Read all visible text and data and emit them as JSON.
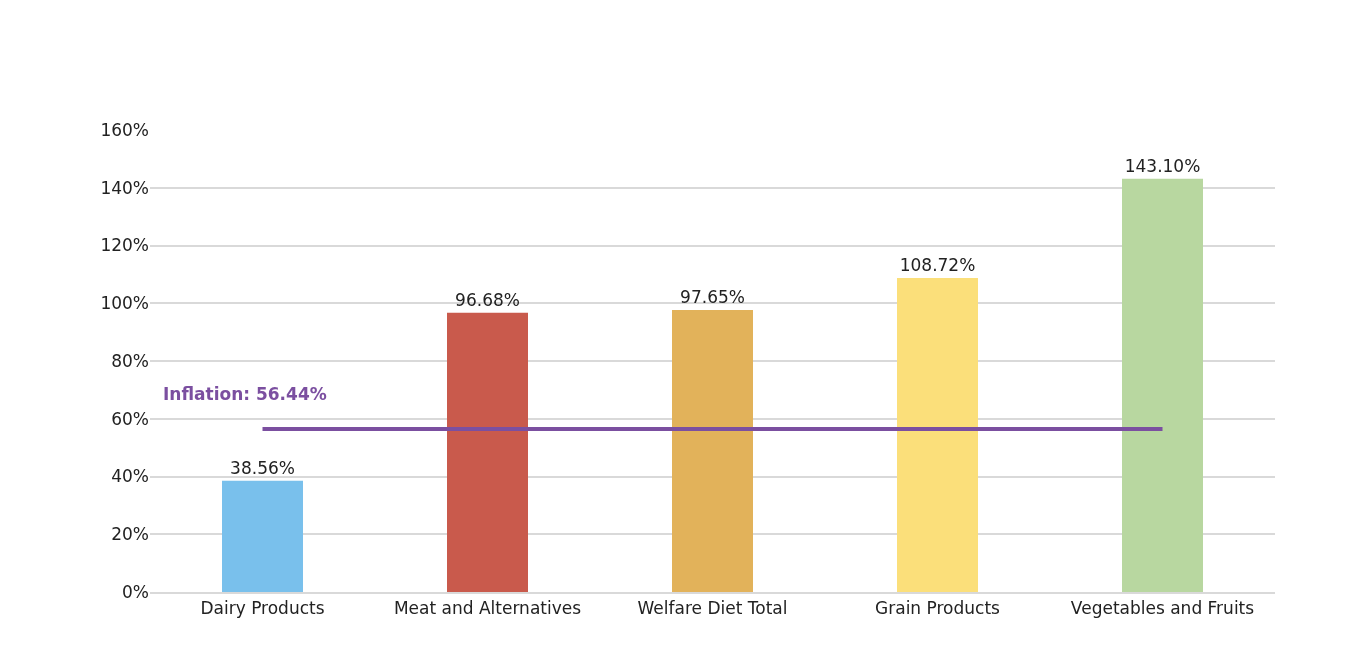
{
  "chart_data": {
    "type": "bar",
    "categories": [
      "Dairy Products",
      "Meat and Alternatives",
      "Welfare Diet Total",
      "Grain Products",
      "Vegetables and Fruits"
    ],
    "values": [
      38.56,
      96.68,
      97.65,
      108.72,
      143.1
    ],
    "colors": [
      "#79c0ec",
      "#c95a4c",
      "#e2b25a",
      "#fbdf7a",
      "#b8d7a0"
    ],
    "value_labels": [
      "38.56%",
      "96.68%",
      "97.65%",
      "108.72%",
      "143.10%"
    ],
    "ylim": [
      0,
      160
    ],
    "yticks": [
      {
        "value": 0,
        "label": "0%"
      },
      {
        "value": 20,
        "label": "20%"
      },
      {
        "value": 40,
        "label": "40%"
      },
      {
        "value": 60,
        "label": "60%"
      },
      {
        "value": 80,
        "label": "80%"
      },
      {
        "value": 100,
        "label": "100%"
      },
      {
        "value": 120,
        "label": "120%"
      },
      {
        "value": 140,
        "label": "140%"
      },
      {
        "value": 160,
        "label": "160%"
      }
    ],
    "grid": "y",
    "legend": false,
    "ref_lines": [
      {
        "axis": "y",
        "value": 56.44,
        "label": "Inflation: 56.44%",
        "color": "#7b4fa0"
      }
    ]
  }
}
